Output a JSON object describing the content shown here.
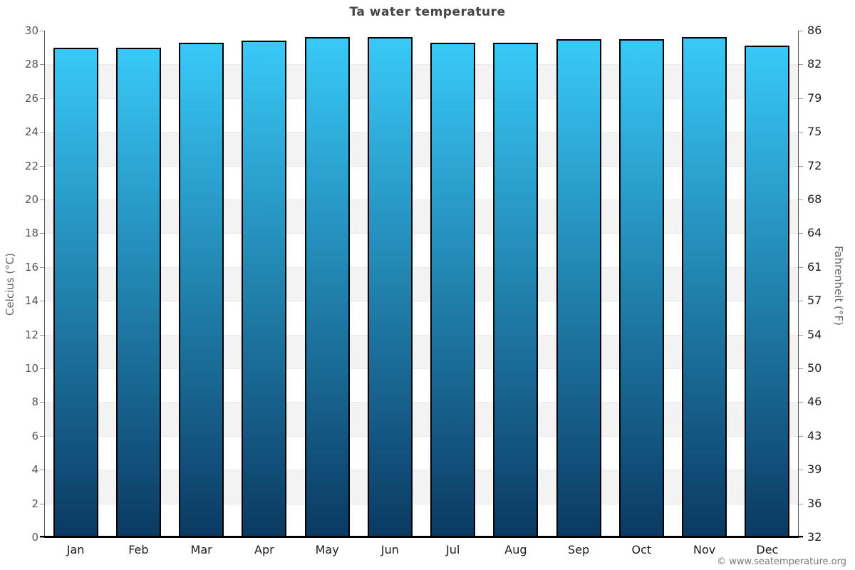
{
  "page": {
    "title": "Ta water temperature",
    "attribution": "© www.seatemperature.org"
  },
  "chart_data": {
    "type": "bar",
    "title": "Ta water temperature",
    "categories": [
      "Jan",
      "Feb",
      "Mar",
      "Apr",
      "May",
      "Jun",
      "Jul",
      "Aug",
      "Sep",
      "Oct",
      "Nov",
      "Dec"
    ],
    "values": [
      29.0,
      29.0,
      29.3,
      29.4,
      29.6,
      29.6,
      29.3,
      29.3,
      29.5,
      29.5,
      29.6,
      29.1
    ],
    "series_name": "Water temperature",
    "xlabel": "",
    "ylabel_left": "Celcius (°C)",
    "ylabel_right": "Fahrenheit (°F)",
    "ylim": [
      0,
      30
    ],
    "yticks_celsius": [
      30,
      28,
      26,
      24,
      22,
      20,
      18,
      16,
      14,
      12,
      10,
      8,
      6,
      4,
      2,
      0
    ],
    "yticks_fahrenheit": [
      86,
      82,
      79,
      75,
      72,
      68,
      64,
      61,
      57,
      54,
      50,
      46,
      43,
      39,
      36,
      32
    ],
    "grid": "horizontal-bands-alternating",
    "legend": "none",
    "colors": {
      "band_white": "#ffffff",
      "band_gray": "#f3f3f3",
      "gridline": "#e9e9e9",
      "bar_gradient_top": "#38c9f8",
      "bar_gradient_bottom": "#0a3a63",
      "bar_border": "#000000",
      "title_text": "#444444",
      "axis_text": "#555555"
    }
  }
}
